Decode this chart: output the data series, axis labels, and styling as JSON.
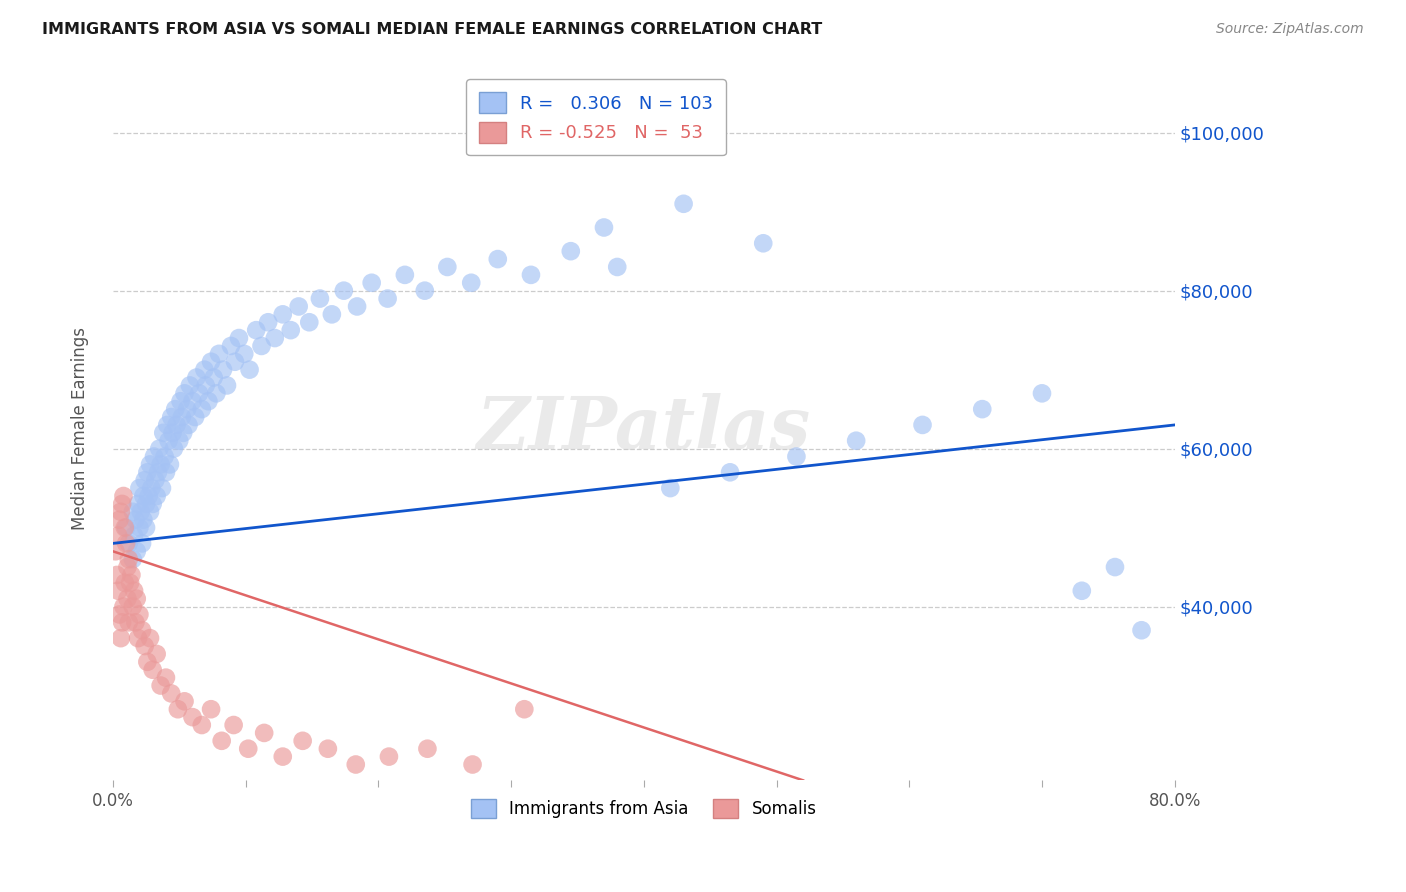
{
  "title": "IMMIGRANTS FROM ASIA VS SOMALI MEDIAN FEMALE EARNINGS CORRELATION CHART",
  "source": "Source: ZipAtlas.com",
  "ylabel": "Median Female Earnings",
  "xlim": [
    0.0,
    0.8
  ],
  "ylim": [
    18000,
    107000
  ],
  "blue_color": "#a4c2f4",
  "pink_color": "#ea9999",
  "blue_line_color": "#1155cc",
  "pink_line_color": "#e06666",
  "legend_blue_label": "Immigrants from Asia",
  "legend_pink_label": "Somalis",
  "R_blue": 0.306,
  "N_blue": 103,
  "R_pink": -0.525,
  "N_pink": 53,
  "watermark": "ZIPatlas",
  "blue_x": [
    0.01,
    0.012,
    0.015,
    0.015,
    0.016,
    0.017,
    0.018,
    0.019,
    0.02,
    0.02,
    0.021,
    0.022,
    0.023,
    0.023,
    0.024,
    0.025,
    0.025,
    0.026,
    0.027,
    0.028,
    0.028,
    0.029,
    0.03,
    0.031,
    0.032,
    0.033,
    0.034,
    0.035,
    0.036,
    0.037,
    0.038,
    0.039,
    0.04,
    0.041,
    0.042,
    0.043,
    0.044,
    0.045,
    0.046,
    0.047,
    0.048,
    0.05,
    0.051,
    0.052,
    0.053,
    0.054,
    0.056,
    0.057,
    0.058,
    0.06,
    0.062,
    0.063,
    0.065,
    0.067,
    0.069,
    0.07,
    0.072,
    0.074,
    0.076,
    0.078,
    0.08,
    0.083,
    0.086,
    0.089,
    0.092,
    0.095,
    0.099,
    0.103,
    0.108,
    0.112,
    0.117,
    0.122,
    0.128,
    0.134,
    0.14,
    0.148,
    0.156,
    0.165,
    0.174,
    0.184,
    0.195,
    0.207,
    0.22,
    0.235,
    0.252,
    0.27,
    0.29,
    0.315,
    0.345,
    0.38,
    0.42,
    0.465,
    0.515,
    0.56,
    0.61,
    0.655,
    0.7,
    0.73,
    0.755,
    0.775,
    0.37,
    0.43,
    0.49
  ],
  "blue_y": [
    50000,
    48000,
    46000,
    52000,
    49000,
    51000,
    47000,
    53000,
    50000,
    55000,
    52000,
    48000,
    54000,
    51000,
    56000,
    53000,
    50000,
    57000,
    54000,
    52000,
    58000,
    55000,
    53000,
    59000,
    56000,
    54000,
    57000,
    60000,
    58000,
    55000,
    62000,
    59000,
    57000,
    63000,
    61000,
    58000,
    64000,
    62000,
    60000,
    65000,
    63000,
    61000,
    66000,
    64000,
    62000,
    67000,
    65000,
    63000,
    68000,
    66000,
    64000,
    69000,
    67000,
    65000,
    70000,
    68000,
    66000,
    71000,
    69000,
    67000,
    72000,
    70000,
    68000,
    73000,
    71000,
    74000,
    72000,
    70000,
    75000,
    73000,
    76000,
    74000,
    77000,
    75000,
    78000,
    76000,
    79000,
    77000,
    80000,
    78000,
    81000,
    79000,
    82000,
    80000,
    83000,
    81000,
    84000,
    82000,
    85000,
    83000,
    55000,
    57000,
    59000,
    61000,
    63000,
    65000,
    67000,
    42000,
    45000,
    37000,
    88000,
    91000,
    86000
  ],
  "pink_x": [
    0.002,
    0.003,
    0.004,
    0.004,
    0.005,
    0.005,
    0.006,
    0.006,
    0.007,
    0.007,
    0.008,
    0.008,
    0.009,
    0.009,
    0.01,
    0.011,
    0.011,
    0.012,
    0.012,
    0.013,
    0.014,
    0.015,
    0.016,
    0.017,
    0.018,
    0.019,
    0.02,
    0.022,
    0.024,
    0.026,
    0.028,
    0.03,
    0.033,
    0.036,
    0.04,
    0.044,
    0.049,
    0.054,
    0.06,
    0.067,
    0.074,
    0.082,
    0.091,
    0.102,
    0.114,
    0.128,
    0.143,
    0.162,
    0.183,
    0.208,
    0.237,
    0.271,
    0.31
  ],
  "pink_y": [
    47000,
    44000,
    49000,
    42000,
    51000,
    39000,
    52000,
    36000,
    53000,
    38000,
    54000,
    40000,
    50000,
    43000,
    48000,
    45000,
    41000,
    46000,
    38000,
    43000,
    44000,
    40000,
    42000,
    38000,
    41000,
    36000,
    39000,
    37000,
    35000,
    33000,
    36000,
    32000,
    34000,
    30000,
    31000,
    29000,
    27000,
    28000,
    26000,
    25000,
    27000,
    23000,
    25000,
    22000,
    24000,
    21000,
    23000,
    22000,
    20000,
    21000,
    22000,
    20000,
    27000
  ],
  "blue_trend_x": [
    0.0,
    0.8
  ],
  "blue_trend_y": [
    48000,
    63000
  ],
  "pink_trend_x": [
    0.0,
    0.52
  ],
  "pink_trend_y": [
    47000,
    18000
  ]
}
